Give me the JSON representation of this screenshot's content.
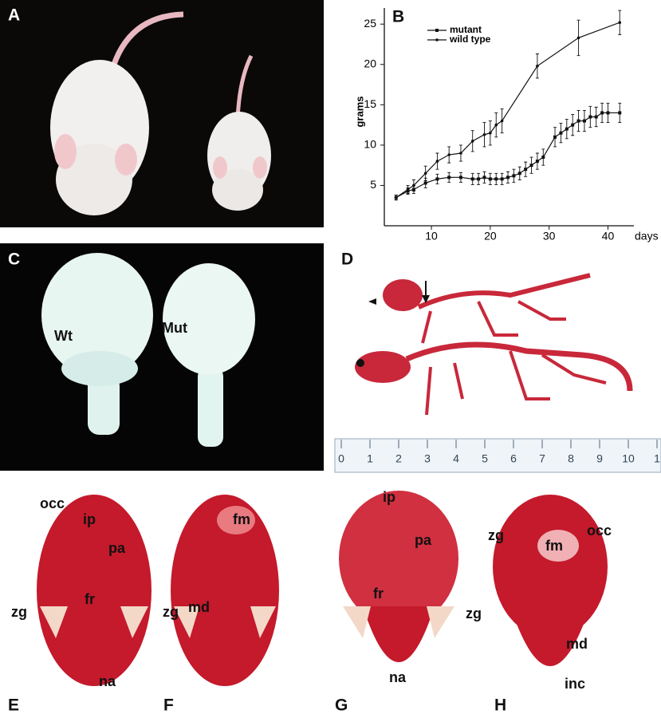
{
  "photo_panels": [
    {
      "label": "A"
    },
    {
      "label": "C",
      "annotations": [
        "Wt",
        "Mut"
      ]
    },
    {
      "label": "D",
      "ruler": [
        "0",
        "1",
        "2",
        "3",
        "4",
        "5",
        "6",
        "7",
        "8",
        "9",
        "10",
        "1"
      ]
    },
    {
      "label": "E",
      "annotations": [
        "occ",
        "ip",
        "pa",
        "fr",
        "zg",
        "na"
      ]
    },
    {
      "label": "F",
      "annotations": [
        "fm",
        "md",
        "zg"
      ]
    },
    {
      "label": "G",
      "annotations": [
        "ip",
        "pa",
        "fr",
        "zg",
        "na"
      ]
    },
    {
      "label": "H",
      "annotations": [
        "zg",
        "fm",
        "occ",
        "md",
        "inc"
      ]
    }
  ],
  "chart_data": {
    "type": "line",
    "title": "B",
    "xlabel": "days",
    "ylabel": "grams",
    "xlim": [
      2,
      44
    ],
    "ylim": [
      0,
      27
    ],
    "xticks": [
      10,
      20,
      30,
      40
    ],
    "yticks": [
      5,
      10,
      15,
      20,
      25
    ],
    "series": [
      {
        "name": "mutant",
        "color": "#111111",
        "marker": "square",
        "x": [
          4,
          6,
          7,
          9,
          11,
          13,
          15,
          17,
          18,
          19,
          20,
          21,
          22,
          23,
          24,
          25,
          26,
          27,
          28,
          29,
          31,
          32,
          33,
          34,
          35,
          36,
          37,
          38,
          39,
          40,
          42
        ],
        "values": [
          3.5,
          4.3,
          4.5,
          5.3,
          5.8,
          6,
          6,
          5.8,
          5.8,
          6,
          5.8,
          5.8,
          5.8,
          6,
          6.2,
          6.5,
          7,
          7.5,
          8,
          8.5,
          11,
          11.5,
          12,
          12.5,
          13,
          13,
          13.5,
          13.5,
          14,
          14,
          14
        ],
        "errors": [
          0.3,
          0.4,
          0.5,
          0.6,
          0.6,
          0.6,
          0.6,
          0.7,
          0.7,
          0.7,
          0.7,
          0.7,
          0.7,
          0.7,
          0.8,
          0.8,
          0.9,
          1.0,
          1.0,
          1.0,
          1.2,
          1.2,
          1.2,
          1.3,
          1.3,
          1.3,
          1.3,
          1.2,
          1.2,
          1.2,
          1.2
        ]
      },
      {
        "name": "wild type",
        "color": "#111111",
        "marker": "dot",
        "x": [
          4,
          6,
          7,
          9,
          11,
          13,
          15,
          17,
          19,
          20,
          21,
          22,
          28,
          35,
          42
        ],
        "values": [
          3.5,
          4.5,
          5,
          6.5,
          8,
          8.8,
          9,
          10.5,
          11.3,
          11.5,
          12.5,
          13,
          19.8,
          23.3,
          25.2
        ],
        "errors": [
          0.3,
          0.5,
          0.7,
          0.9,
          1.0,
          1.0,
          1.0,
          1.3,
          1.5,
          1.5,
          1.5,
          1.5,
          1.5,
          2.2,
          1.5
        ]
      }
    ],
    "legend": "upper left",
    "grid": false
  }
}
